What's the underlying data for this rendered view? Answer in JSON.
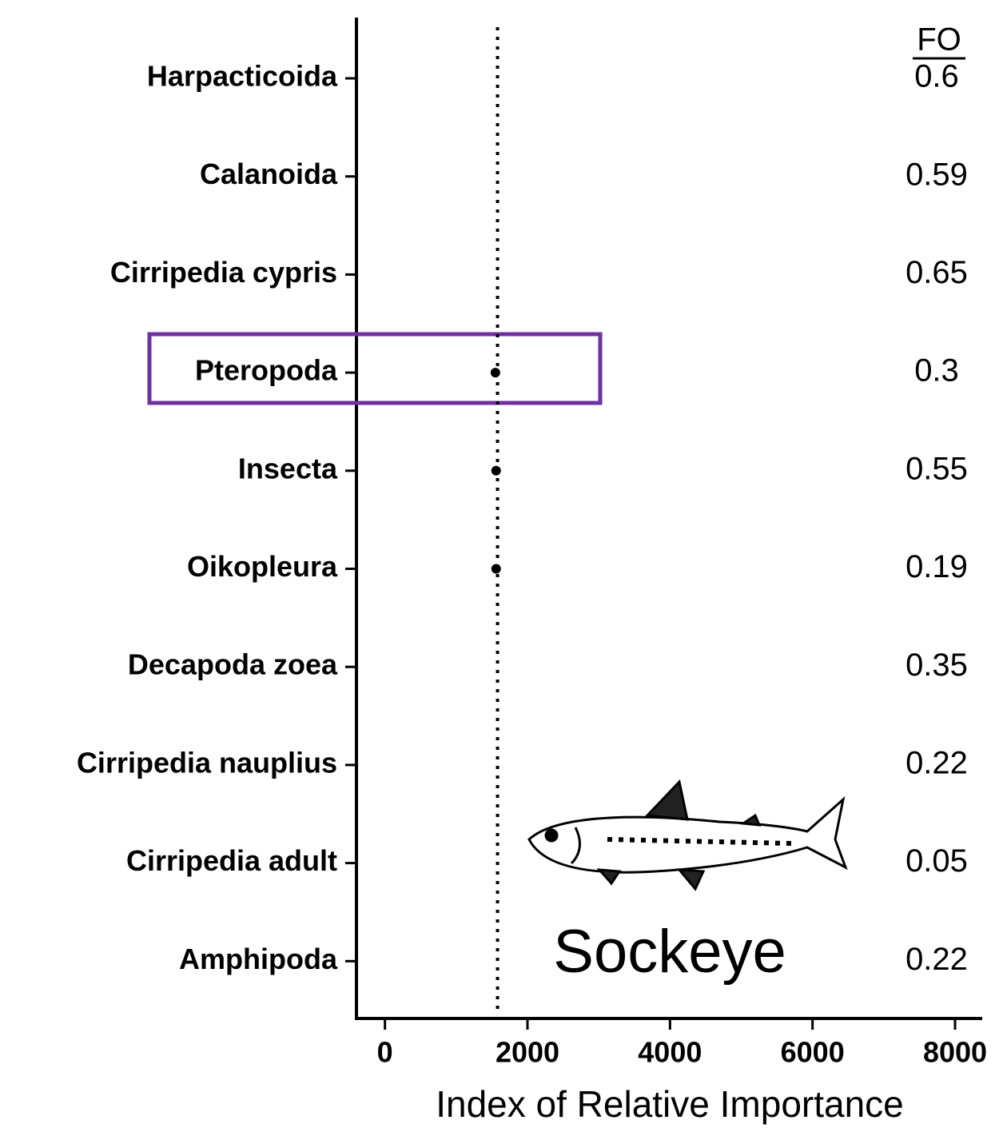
{
  "chart_data": {
    "type": "dot",
    "categories": [
      "Harpacticoida",
      "Calanoida",
      "Cirripedia cypris",
      "Pteropoda",
      "Insecta",
      "Oikopleura",
      "Decapoda zoea",
      "Cirripedia nauplius",
      "Cirripedia adult",
      "Amphipoda"
    ],
    "values": [
      null,
      null,
      null,
      1550,
      1560,
      1560,
      null,
      null,
      null,
      null
    ],
    "color": "#000000",
    "xlabel": "Index of Relative Importance",
    "xlim": [
      -400,
      8370
    ],
    "xticks": [
      0,
      2000,
      4000,
      6000,
      8000
    ],
    "reference_line": 1580,
    "fo_header": "FO",
    "fo": [
      0.6,
      0.59,
      0.65,
      0.3,
      0.55,
      0.19,
      0.35,
      0.22,
      0.05,
      0.22
    ],
    "annotation": "Sockeye"
  }
}
